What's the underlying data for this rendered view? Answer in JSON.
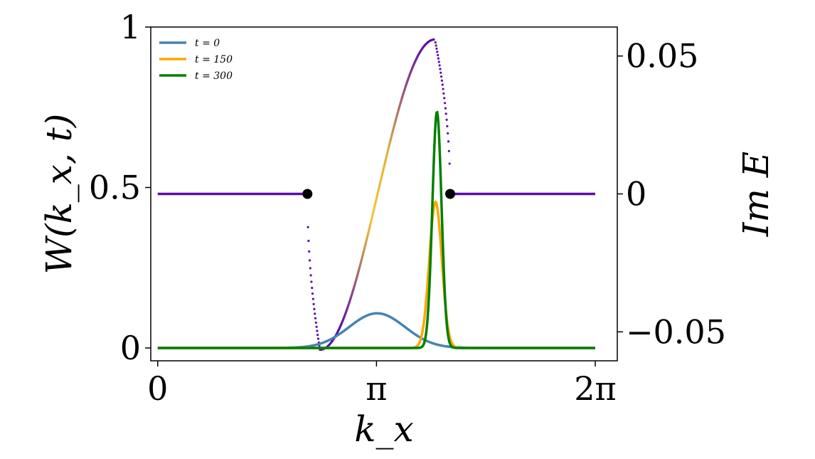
{
  "chart_data": {
    "type": "line",
    "title": "",
    "xlabel": "k_x",
    "ylabel_left": "W(k_x, t)",
    "ylabel_right": "Im E",
    "xlim": [
      -0.1,
      6.6
    ],
    "xticks": [
      {
        "value": 0,
        "label": "0"
      },
      {
        "value": 3.14159,
        "label": "π"
      },
      {
        "value": 6.28318,
        "label": "2π"
      }
    ],
    "ylim_left": [
      -0.04,
      1.0
    ],
    "yticks_left": [
      {
        "value": 0,
        "label": "0"
      },
      {
        "value": 0.5,
        "label": "0.5"
      },
      {
        "value": 1,
        "label": "1"
      }
    ],
    "ylim_right": [
      -0.0605,
      0.0605
    ],
    "yticks_right": [
      {
        "value": 0.05,
        "label": "0.05"
      },
      {
        "value": 0,
        "label": "0"
      },
      {
        "value": -0.05,
        "label": "−0.05"
      }
    ],
    "legend": {
      "position": "top-left",
      "entries": [
        "t = 0",
        "t = 150",
        "t = 300"
      ]
    },
    "grid": false,
    "series": [
      {
        "name": "t = 0",
        "color": "#4682b4",
        "axis": "left",
        "shape": "gaussian",
        "center": 3.15,
        "width": 0.4,
        "peak": 0.108
      },
      {
        "name": "t = 150",
        "color": "#ffa500",
        "axis": "left",
        "shape": "gaussian",
        "center": 3.99,
        "width": 0.09,
        "peak": 0.455
      },
      {
        "name": "t = 300",
        "color": "#008000",
        "axis": "left",
        "shape": "gaussian",
        "center": 4.01,
        "width": 0.066,
        "peak": 0.735
      }
    ],
    "im_e": {
      "axis": "right",
      "colors": [
        "#5b0fa8",
        "#f2c838"
      ],
      "marker_color": "#000000",
      "flat_left": [
        0,
        2.15
      ],
      "flat_right": [
        4.2,
        6.283
      ],
      "flat_value": 0,
      "exceptional_points": [
        2.15,
        4.2
      ],
      "min": {
        "x": 2.33,
        "y": -0.0565
      },
      "max": {
        "x": 3.98,
        "y": 0.056
      }
    }
  }
}
